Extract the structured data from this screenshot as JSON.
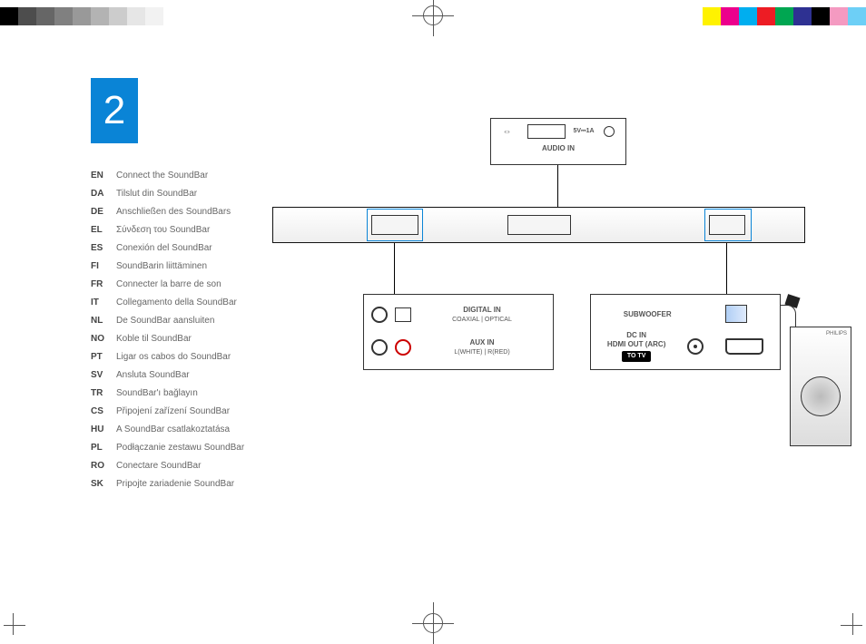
{
  "step_number": "2",
  "badge_color": "#0a84d6",
  "swatches_left": [
    "#000000",
    "#4d4d4d",
    "#666666",
    "#808080",
    "#999999",
    "#b3b3b3",
    "#cccccc",
    "#e6e6e6",
    "#f2f2f2",
    "#ffffff"
  ],
  "swatches_right": [
    "#ffffff",
    "#fff200",
    "#ec008c",
    "#00aeef",
    "#ed1c24",
    "#00a651",
    "#2e3192",
    "#000000",
    "#f49ac1",
    "#6dcff6"
  ],
  "languages": [
    {
      "code": "EN",
      "text": "Connect the SoundBar"
    },
    {
      "code": "DA",
      "text": "Tilslut din SoundBar"
    },
    {
      "code": "DE",
      "text": "Anschließen des SoundBars"
    },
    {
      "code": "EL",
      "text": "Σύνδεση του SoundBar"
    },
    {
      "code": "ES",
      "text": "Conexión del SoundBar"
    },
    {
      "code": "FI",
      "text": "SoundBarin liittäminen"
    },
    {
      "code": "FR",
      "text": "Connecter la barre de son"
    },
    {
      "code": "IT",
      "text": "Collegamento della SoundBar"
    },
    {
      "code": "NL",
      "text": "De SoundBar aansluiten"
    },
    {
      "code": "NO",
      "text": "Koble til SoundBar"
    },
    {
      "code": "PT",
      "text": "Ligar os cabos do SoundBar"
    },
    {
      "code": "SV",
      "text": "Ansluta SoundBar"
    },
    {
      "code": "TR",
      "text": "SoundBar'ı bağlayın"
    },
    {
      "code": "CS",
      "text": "Připojení zařízení SoundBar"
    },
    {
      "code": "HU",
      "text": "A SoundBar csatlakoztatása"
    },
    {
      "code": "PL",
      "text": "Podłączanie zestawu SoundBar"
    },
    {
      "code": "RO",
      "text": "Conectare SoundBar"
    },
    {
      "code": "SK",
      "text": "Pripojte zariadenie SoundBar"
    }
  ],
  "panel_top": {
    "power": "5V⎓1A",
    "audio_in": "AUDIO IN"
  },
  "panel_left": {
    "digital_in": "DIGITAL IN",
    "digital_sub": "COAXIAL | OPTICAL",
    "aux_in": "AUX IN",
    "aux_sub": "L(WHITE) | R(RED)"
  },
  "panel_right": {
    "subwoofer": "SUBWOOFER",
    "dc_in": "DC IN",
    "hdmi": "HDMI OUT (ARC)",
    "to_tv": "TO TV"
  },
  "subwoofer_brand": "PHILIPS",
  "highlight_color": "#0a84d6"
}
